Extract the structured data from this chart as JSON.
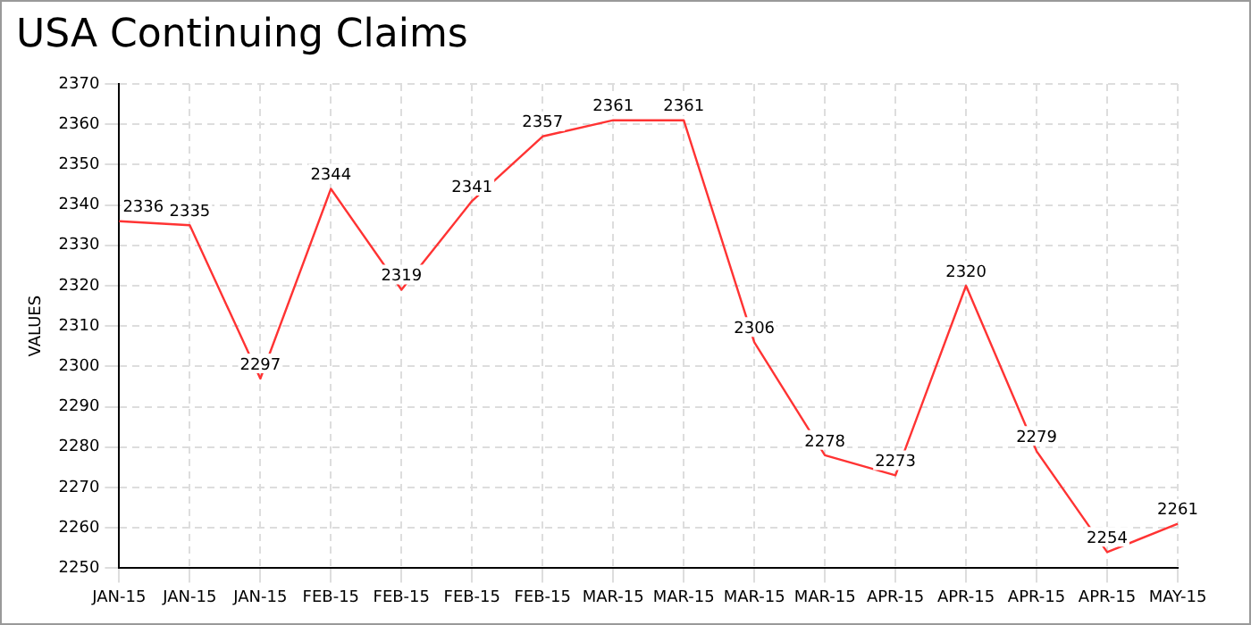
{
  "chart_data": {
    "type": "line",
    "title": "USA Continuing Claims",
    "ylabel": "VALUES",
    "categories": [
      "JAN-15",
      "JAN-15",
      "JAN-15",
      "FEB-15",
      "FEB-15",
      "FEB-15",
      "FEB-15",
      "MAR-15",
      "MAR-15",
      "MAR-15",
      "MAR-15",
      "APR-15",
      "APR-15",
      "APR-15",
      "APR-15",
      "MAY-15"
    ],
    "series": [
      {
        "color": "#ff3333",
        "values": [
          2336,
          2335,
          2297,
          2344,
          2319,
          2341,
          2357,
          2361,
          2361,
          2306,
          2278,
          2273,
          2320,
          2279,
          2254,
          2261
        ]
      }
    ],
    "ylim": [
      2250,
      2370
    ],
    "yticks": [
      2250,
      2260,
      2270,
      2280,
      2290,
      2300,
      2310,
      2320,
      2330,
      2340,
      2350,
      2360,
      2370
    ],
    "grid": true,
    "data_labels": true,
    "legend": false,
    "marker": "none",
    "line_style": "solid"
  }
}
